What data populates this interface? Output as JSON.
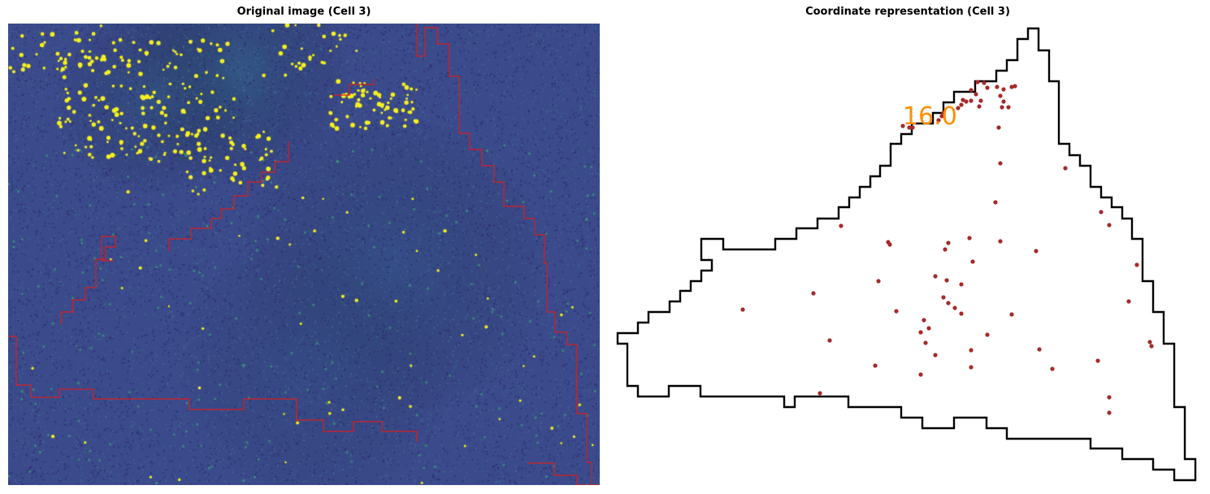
{
  "figure": {
    "left_title": "Original image (Cell 3)",
    "right_title": "Coordinate representation (Cell 3)"
  },
  "coordinate_panel": {
    "cell_label": "16.0",
    "colors": {
      "outline": "#000000",
      "points": "#a52a2a",
      "label": "#ff8c00"
    }
  },
  "image_panel": {
    "colors": {
      "background": "#3b4b8c",
      "spots": "#f2ee1e",
      "mask_boundary": "#d42020"
    }
  }
}
